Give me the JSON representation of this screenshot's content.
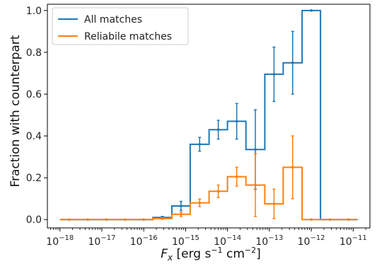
{
  "chart_data": {
    "type": "line",
    "xscale": "log",
    "xlabel": "F_x [erg s^-1 cm^-2]",
    "ylabel": "Fraction with counterpart",
    "xlim": [
      "1e-18",
      "4e-11"
    ],
    "ylim": [
      -0.04,
      1.03
    ],
    "yticks": [
      "0.0",
      "0.2",
      "0.4",
      "0.6",
      "0.8",
      "1.0"
    ],
    "xticks": [
      {
        "base": "10",
        "exp": "−18",
        "value": 1e-18
      },
      {
        "base": "10",
        "exp": "−17",
        "value": 1e-17
      },
      {
        "base": "10",
        "exp": "−16",
        "value": 1e-16
      },
      {
        "base": "10",
        "exp": "−15",
        "value": 1e-15
      },
      {
        "base": "10",
        "exp": "−14",
        "value": 1e-14
      },
      {
        "base": "10",
        "exp": "−13",
        "value": 1e-13
      },
      {
        "base": "10",
        "exp": "−12",
        "value": 1e-12
      },
      {
        "base": "10",
        "exp": "−11",
        "value": 1e-11
      }
    ],
    "bin_edges": [
      -18,
      -17.56,
      -17.11,
      -16.67,
      -16.22,
      -15.78,
      -15.33,
      -14.89,
      -14.44,
      -14.0,
      -13.56,
      -13.11,
      -12.67,
      -12.22,
      -11.78,
      -11.33,
      -10.89
    ],
    "series": [
      {
        "name": "All matches",
        "color": "#1f77b4",
        "values": [
          0.0,
          0.0,
          0.0,
          0.0,
          0.0,
          0.01,
          0.065,
          0.36,
          0.43,
          0.47,
          0.335,
          0.695,
          0.75,
          1.0,
          0.0,
          0.0
        ],
        "err": [
          0,
          0,
          0,
          0,
          0,
          0.005,
          0.022,
          0.033,
          0.045,
          0.085,
          0.19,
          0.13,
          0.15,
          0.0,
          0,
          0
        ]
      },
      {
        "name": "Reliabile matches",
        "color": "#ff7f0e",
        "values": [
          0.0,
          0.0,
          0.0,
          0.0,
          0.0,
          0.005,
          0.025,
          0.08,
          0.135,
          0.205,
          0.165,
          0.075,
          0.25,
          0.0,
          0.0,
          0.0
        ],
        "err": [
          0,
          0,
          0,
          0,
          0,
          0.003,
          0.01,
          0.018,
          0.03,
          0.045,
          0.15,
          0.07,
          0.15,
          0,
          0,
          0
        ]
      }
    ],
    "legend": {
      "position": "top-left"
    },
    "grid": false
  }
}
